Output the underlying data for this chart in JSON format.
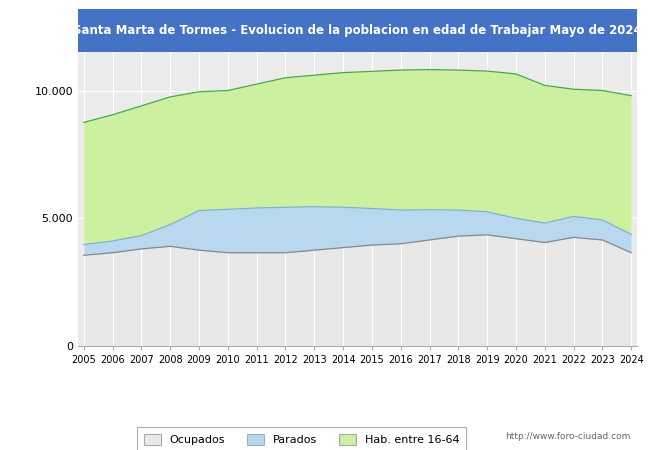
{
  "title": "Santa Marta de Tormes - Evolucion de la poblacion en edad de Trabajar Mayo de 2024",
  "title_color": "white",
  "title_bg_color": "#4472C4",
  "years": [
    2005,
    2006,
    2007,
    2008,
    2009,
    2010,
    2011,
    2012,
    2013,
    2014,
    2015,
    2016,
    2017,
    2018,
    2019,
    2020,
    2021,
    2022,
    2023,
    2024
  ],
  "hab_16_64": [
    8750,
    9050,
    9400,
    9750,
    9950,
    10000,
    10250,
    10500,
    10600,
    10700,
    10750,
    10800,
    10820,
    10800,
    10760,
    10650,
    10200,
    10050,
    10000,
    9800
  ],
  "parados": [
    420,
    460,
    520,
    850,
    1550,
    1700,
    1750,
    1780,
    1700,
    1580,
    1430,
    1320,
    1180,
    1020,
    900,
    800,
    760,
    820,
    780,
    720
  ],
  "ocupados": [
    3550,
    3650,
    3800,
    3900,
    3750,
    3650,
    3650,
    3650,
    3750,
    3850,
    3950,
    4000,
    4150,
    4300,
    4350,
    4200,
    4050,
    4250,
    4150,
    3650
  ],
  "color_hab": "#ccf0a0",
  "color_parados": "#b8d8f0",
  "color_ocupados": "#e8e8e8",
  "color_hab_line": "#44aa44",
  "color_parados_line": "#7ab0d8",
  "color_ocupados_line": "#888888",
  "plot_bg": "#ebebeb",
  "grid_color": "white",
  "ylim": [
    0,
    11500
  ],
  "yticks": [
    0,
    5000,
    10000
  ],
  "ytick_labels": [
    "0",
    "5.000",
    "10.000"
  ],
  "legend_labels": [
    "Ocupados",
    "Parados",
    "Hab. entre 16-64"
  ],
  "legend_colors": [
    "#e8e8e8",
    "#b8d8f0",
    "#ccf0a0"
  ],
  "url_text": "http://www.foro-ciudad.com"
}
